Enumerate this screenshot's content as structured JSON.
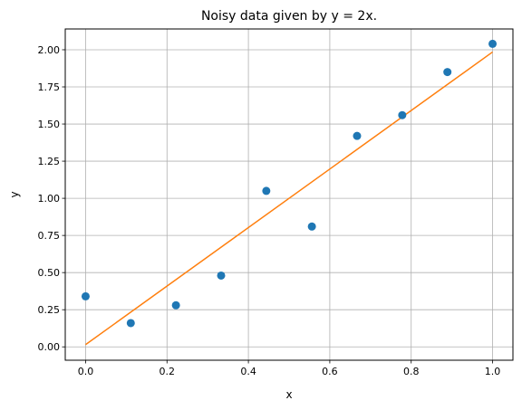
{
  "chart_data": {
    "type": "scatter",
    "title": "Noisy data given by y = 2x.",
    "xlabel": "x",
    "ylabel": "y",
    "xlim": [
      -0.05,
      1.05
    ],
    "ylim": [
      -0.09,
      2.14
    ],
    "grid": true,
    "legend": "none",
    "xticks": [
      0.0,
      0.2,
      0.4,
      0.6,
      0.8,
      1.0
    ],
    "xtick_labels": [
      "0.0",
      "0.2",
      "0.4",
      "0.6",
      "0.8",
      "1.0"
    ],
    "yticks": [
      0.0,
      0.25,
      0.5,
      0.75,
      1.0,
      1.25,
      1.5,
      1.75,
      2.0
    ],
    "ytick_labels": [
      "0.00",
      "0.25",
      "0.50",
      "0.75",
      "1.00",
      "1.25",
      "1.50",
      "1.75",
      "2.00"
    ],
    "series": [
      {
        "type": "scatter",
        "color": "#1f77b4",
        "x": [
          0.0,
          0.111,
          0.222,
          0.333,
          0.444,
          0.556,
          0.667,
          0.778,
          0.889,
          1.0
        ],
        "y": [
          0.34,
          0.16,
          0.28,
          0.48,
          1.05,
          0.81,
          1.42,
          1.56,
          1.85,
          2.04
        ]
      },
      {
        "type": "line",
        "color": "#ff7f0e",
        "x": [
          0.0,
          1.0
        ],
        "y": [
          0.015,
          1.985
        ]
      }
    ]
  }
}
